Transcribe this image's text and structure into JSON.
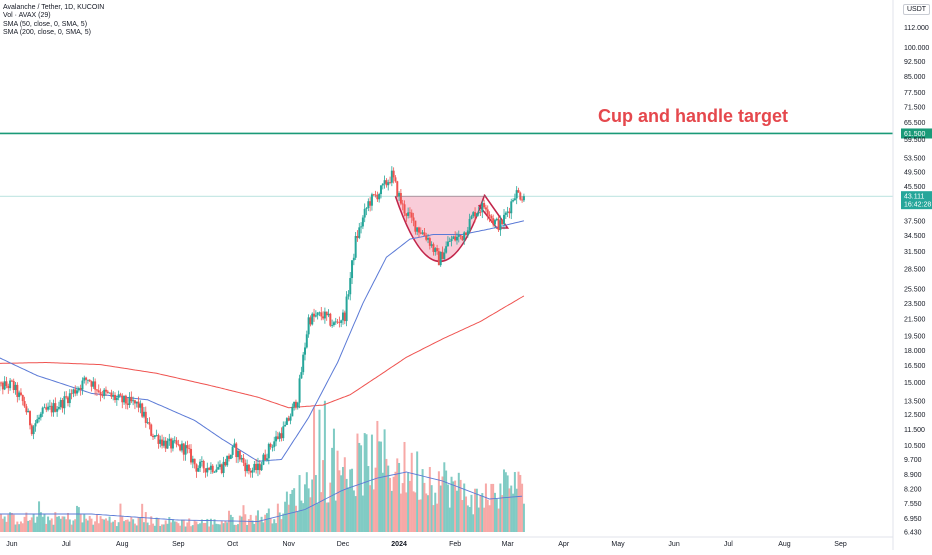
{
  "header": {
    "symbol_line": "Avalanche / Tether, 1D, KUCOIN",
    "vol_line": "Vol · AVAX (29)",
    "sma50_line": "SMA (50, close, 0, SMA, 5)",
    "sma200_line": "SMA (200, close, 0, SMA, 5)",
    "currency": "USDT"
  },
  "chart_data": {
    "type": "candlestick",
    "title": "",
    "scale": "log",
    "y_range": [
      6.43,
      120
    ],
    "y_ticks": [
      "112.000",
      "100.000",
      "92.500",
      "85.000",
      "77.500",
      "71.500",
      "65.500",
      "59.500",
      "53.500",
      "49.500",
      "45.500",
      "37.500",
      "34.500",
      "31.500",
      "28.500",
      "25.500",
      "23.500",
      "21.500",
      "19.500",
      "18.000",
      "16.500",
      "15.000",
      "13.500",
      "12.500",
      "11.500",
      "10.500",
      "9.700",
      "8.900",
      "8.200",
      "7.550",
      "6.950",
      "6.430"
    ],
    "x_ticks": [
      "Jun",
      "Jul",
      "Aug",
      "Sep",
      "Oct",
      "Nov",
      "Dec",
      "2024",
      "Feb",
      "Mar",
      "Apr",
      "May",
      "Jun",
      "Jul",
      "Aug",
      "Sep"
    ],
    "x_range": [
      "2023-05-21",
      "2024-09-30"
    ],
    "annotation": {
      "text": "Cup and handle target",
      "target_price": "61.500",
      "target_value": 61.5
    },
    "last_price": {
      "value": "43.111",
      "countdown": "16:42:28",
      "level": 43.111
    },
    "colors": {
      "up": "#26a69a",
      "down": "#ef5350",
      "sma50": "#5b7ad6",
      "sma200": "#ef5350",
      "target_line": "#1a9a78",
      "cup_fill": "#f6b7c8",
      "cup_stroke": "#c2254a"
    },
    "price_series_anchors": [
      [
        "2023-05-22",
        14.6
      ],
      [
        "2023-06-01",
        14.8
      ],
      [
        "2023-06-08",
        13.2
      ],
      [
        "2023-06-12",
        11.6
      ],
      [
        "2023-06-18",
        12.6
      ],
      [
        "2023-06-28",
        13.3
      ],
      [
        "2023-07-13",
        15.4
      ],
      [
        "2023-07-20",
        14.2
      ],
      [
        "2023-08-01",
        13.5
      ],
      [
        "2023-08-10",
        13.2
      ],
      [
        "2023-08-17",
        11.3
      ],
      [
        "2023-08-25",
        10.6
      ],
      [
        "2023-09-05",
        10.3
      ],
      [
        "2023-09-11",
        9.3
      ],
      [
        "2023-09-25",
        9.3
      ],
      [
        "2023-10-02",
        10.3
      ],
      [
        "2023-10-10",
        9.1
      ],
      [
        "2023-10-15",
        9.2
      ],
      [
        "2023-10-22",
        10.5
      ],
      [
        "2023-10-30",
        11.6
      ],
      [
        "2023-11-06",
        13.8
      ],
      [
        "2023-11-12",
        21.5
      ],
      [
        "2023-11-20",
        22.0
      ],
      [
        "2023-11-26",
        20.8
      ],
      [
        "2023-12-02",
        22.0
      ],
      [
        "2023-12-08",
        33.5
      ],
      [
        "2023-12-15",
        41.5
      ],
      [
        "2023-12-22",
        44.5
      ],
      [
        "2023-12-28",
        48.5
      ],
      [
        "2024-01-03",
        40.5
      ],
      [
        "2024-01-10",
        36.5
      ],
      [
        "2024-01-17",
        34.0
      ],
      [
        "2024-01-23",
        30.0
      ],
      [
        "2024-01-29",
        33.5
      ],
      [
        "2024-02-05",
        34.5
      ],
      [
        "2024-02-12",
        39.5
      ],
      [
        "2024-02-18",
        41.0
      ],
      [
        "2024-02-22",
        37.5
      ],
      [
        "2024-02-26",
        36.5
      ],
      [
        "2024-03-02",
        40.5
      ],
      [
        "2024-03-05",
        44.0
      ],
      [
        "2024-03-10",
        43.1
      ]
    ],
    "sma50_anchors": [
      [
        "2023-05-21",
        17.6
      ],
      [
        "2023-06-15",
        15.6
      ],
      [
        "2023-07-15",
        14.1
      ],
      [
        "2023-08-15",
        13.6
      ],
      [
        "2023-09-10",
        12.1
      ],
      [
        "2023-09-25",
        10.9
      ],
      [
        "2023-10-15",
        9.6
      ],
      [
        "2023-10-28",
        9.7
      ],
      [
        "2023-11-12",
        12.3
      ],
      [
        "2023-11-28",
        16.8
      ],
      [
        "2023-12-12",
        23.5
      ],
      [
        "2023-12-25",
        30.5
      ],
      [
        "2024-01-07",
        33.8
      ],
      [
        "2024-01-20",
        34.7
      ],
      [
        "2024-02-05",
        34.7
      ],
      [
        "2024-02-20",
        35.8
      ],
      [
        "2024-03-10",
        37.5
      ]
    ],
    "sma200_anchors": [
      [
        "2023-05-21",
        16.7
      ],
      [
        "2023-06-20",
        16.8
      ],
      [
        "2023-07-20",
        16.6
      ],
      [
        "2023-08-20",
        15.8
      ],
      [
        "2023-09-20",
        14.7
      ],
      [
        "2023-10-15",
        13.8
      ],
      [
        "2023-11-01",
        13.0
      ],
      [
        "2023-11-20",
        13.2
      ],
      [
        "2023-12-05",
        14.0
      ],
      [
        "2023-12-20",
        15.5
      ],
      [
        "2024-01-05",
        17.3
      ],
      [
        "2024-01-25",
        19.2
      ],
      [
        "2024-02-15",
        21.2
      ],
      [
        "2024-03-10",
        24.5
      ]
    ],
    "volume_anchors": [
      [
        "2023-05-21",
        0.1
      ],
      [
        "2023-07-01",
        0.1
      ],
      [
        "2023-08-15",
        0.08
      ],
      [
        "2023-09-20",
        0.07
      ],
      [
        "2023-10-25",
        0.13
      ],
      [
        "2023-11-15",
        0.4
      ],
      [
        "2023-12-01",
        0.45
      ],
      [
        "2023-12-20",
        0.55
      ],
      [
        "2024-01-05",
        0.45
      ],
      [
        "2024-01-25",
        0.38
      ],
      [
        "2024-02-15",
        0.22
      ],
      [
        "2024-03-05",
        0.38
      ],
      [
        "2024-03-10",
        0.25
      ]
    ],
    "volume_ma_anchors": [
      [
        "2023-05-21",
        0.12
      ],
      [
        "2023-07-15",
        0.12
      ],
      [
        "2023-09-01",
        0.08
      ],
      [
        "2023-10-15",
        0.07
      ],
      [
        "2023-11-10",
        0.15
      ],
      [
        "2023-12-01",
        0.28
      ],
      [
        "2023-12-20",
        0.36
      ],
      [
        "2024-01-05",
        0.4
      ],
      [
        "2024-01-25",
        0.34
      ],
      [
        "2024-02-20",
        0.22
      ],
      [
        "2024-03-10",
        0.24
      ]
    ],
    "cup_and_handle": {
      "rim_level": 43.1,
      "rim_start": "2023-12-30",
      "rim_end": "2024-02-17",
      "cup_bottom": 29.5,
      "handle": [
        [
          "2024-02-17",
          43.5
        ],
        [
          "2024-03-01",
          36.0
        ],
        [
          "2024-02-24",
          36.0
        ],
        [
          "2024-02-14",
          41.0
        ]
      ]
    }
  }
}
